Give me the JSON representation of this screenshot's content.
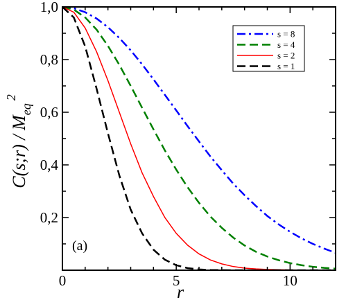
{
  "chart_data": {
    "type": "line",
    "panel_label": "(a)",
    "xlabel": "r",
    "ylabel": "C(s;r) / M",
    "ylabel_sub": "eq",
    "ylabel_sup": "2",
    "xlim": [
      0,
      12
    ],
    "ylim": [
      0,
      1.0
    ],
    "x_ticks": [
      0,
      5,
      10
    ],
    "x_tick_labels": [
      "0",
      "5",
      "10"
    ],
    "y_ticks": [
      0.2,
      0.4,
      0.6,
      0.8,
      1.0
    ],
    "y_tick_labels": [
      "0,2",
      "0,4",
      "0,6",
      "0,8",
      "1,0"
    ],
    "legend_position": "top-right",
    "grid": false,
    "series": [
      {
        "name": "s = 8",
        "color": "#0000ff",
        "dash": "dashdot",
        "x": [
          0,
          0.5,
          1,
          1.5,
          2,
          2.5,
          3,
          3.5,
          4,
          4.5,
          5,
          5.5,
          6,
          6.5,
          7,
          7.5,
          8,
          8.5,
          9,
          9.5,
          10,
          10.5,
          11,
          11.5,
          12
        ],
        "values": [
          1.0,
          0.995,
          0.98,
          0.956,
          0.923,
          0.882,
          0.835,
          0.782,
          0.725,
          0.666,
          0.607,
          0.547,
          0.489,
          0.432,
          0.38,
          0.329,
          0.285,
          0.244,
          0.206,
          0.174,
          0.146,
          0.121,
          0.1,
          0.082,
          0.066
        ]
      },
      {
        "name": "s = 4",
        "color": "#008000",
        "dash": "dashed",
        "x": [
          0,
          0.5,
          1,
          1.5,
          2,
          2.5,
          3,
          3.5,
          4,
          4.5,
          5,
          5.5,
          6,
          6.5,
          7,
          7.5,
          8,
          8.5,
          9,
          9.5,
          10,
          10.5,
          11,
          11.5,
          12
        ],
        "values": [
          1.0,
          0.99,
          0.96,
          0.914,
          0.852,
          0.78,
          0.7,
          0.617,
          0.535,
          0.455,
          0.382,
          0.315,
          0.256,
          0.204,
          0.161,
          0.124,
          0.094,
          0.07,
          0.052,
          0.038,
          0.027,
          0.019,
          0.013,
          0.009,
          0.006
        ]
      },
      {
        "name": "s = 2",
        "color": "#ff0000",
        "dash": "solid",
        "x": [
          0,
          0.5,
          1,
          1.5,
          2,
          2.5,
          3,
          3.5,
          4,
          4.5,
          5,
          5.5,
          6,
          6.5,
          7,
          7.5,
          8,
          8.5,
          9,
          9.5,
          10,
          10.5,
          11,
          11.5,
          12
        ],
        "values": [
          1.0,
          0.98,
          0.92,
          0.83,
          0.72,
          0.6,
          0.48,
          0.37,
          0.28,
          0.2,
          0.14,
          0.095,
          0.062,
          0.039,
          0.024,
          0.014,
          0.008,
          0.005,
          0.003,
          0.002,
          0.001,
          0.0005,
          0.0002,
          0.0001,
          0.0
        ]
      },
      {
        "name": "s = 1",
        "color": "#000000",
        "dash": "dashed",
        "x": [
          0,
          0.5,
          1,
          1.5,
          2,
          2.5,
          3,
          3.5,
          4,
          4.5,
          5,
          5.5,
          6,
          6.5,
          7,
          7.5,
          8,
          8.5,
          9,
          9.5,
          10,
          10.5,
          11,
          11.5,
          12
        ],
        "values": [
          1.0,
          0.96,
          0.85,
          0.69,
          0.52,
          0.36,
          0.23,
          0.14,
          0.078,
          0.04,
          0.019,
          0.008,
          0.003,
          0.001,
          0.0003,
          0.0,
          0.0,
          0.0,
          0.0,
          0.0,
          0.0,
          0.0,
          0.0,
          0.0,
          0.0
        ]
      }
    ]
  }
}
